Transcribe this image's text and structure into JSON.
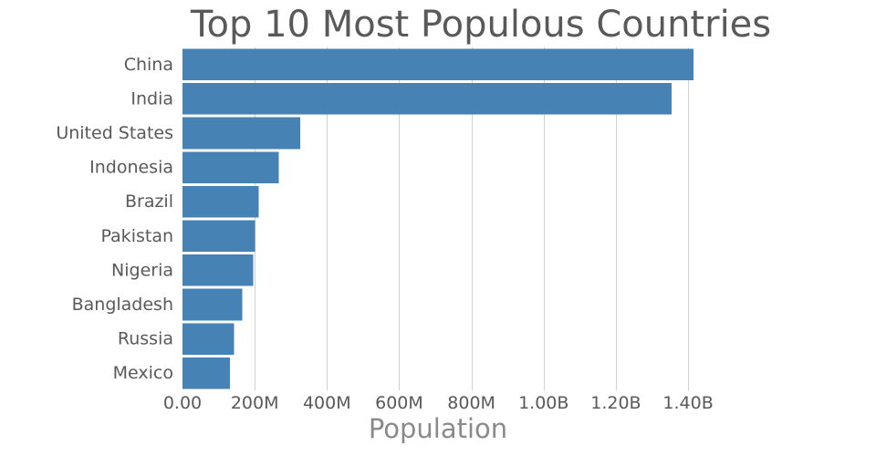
{
  "chart_data": {
    "type": "bar",
    "orientation": "horizontal",
    "title": "Top 10 Most Populous Countries",
    "xlabel": "Population",
    "ylabel": "",
    "categories": [
      "China",
      "India",
      "United States",
      "Indonesia",
      "Brazil",
      "Pakistan",
      "Nigeria",
      "Bangladesh",
      "Russia",
      "Mexico"
    ],
    "values": [
      1415000000,
      1354000000,
      326000000,
      266000000,
      211000000,
      201000000,
      196000000,
      166000000,
      143000000,
      131000000
    ],
    "xlim": [
      0,
      1415000000
    ],
    "xticks": [
      0,
      200000000,
      400000000,
      600000000,
      800000000,
      1000000000,
      1200000000,
      1400000000
    ],
    "xtick_labels": [
      "0.00",
      "200M",
      "400M",
      "600M",
      "800M",
      "1.00B",
      "1.20B",
      "1.40B"
    ],
    "grid": "vertical",
    "legend": "none",
    "bar_color": "#4682b4"
  }
}
